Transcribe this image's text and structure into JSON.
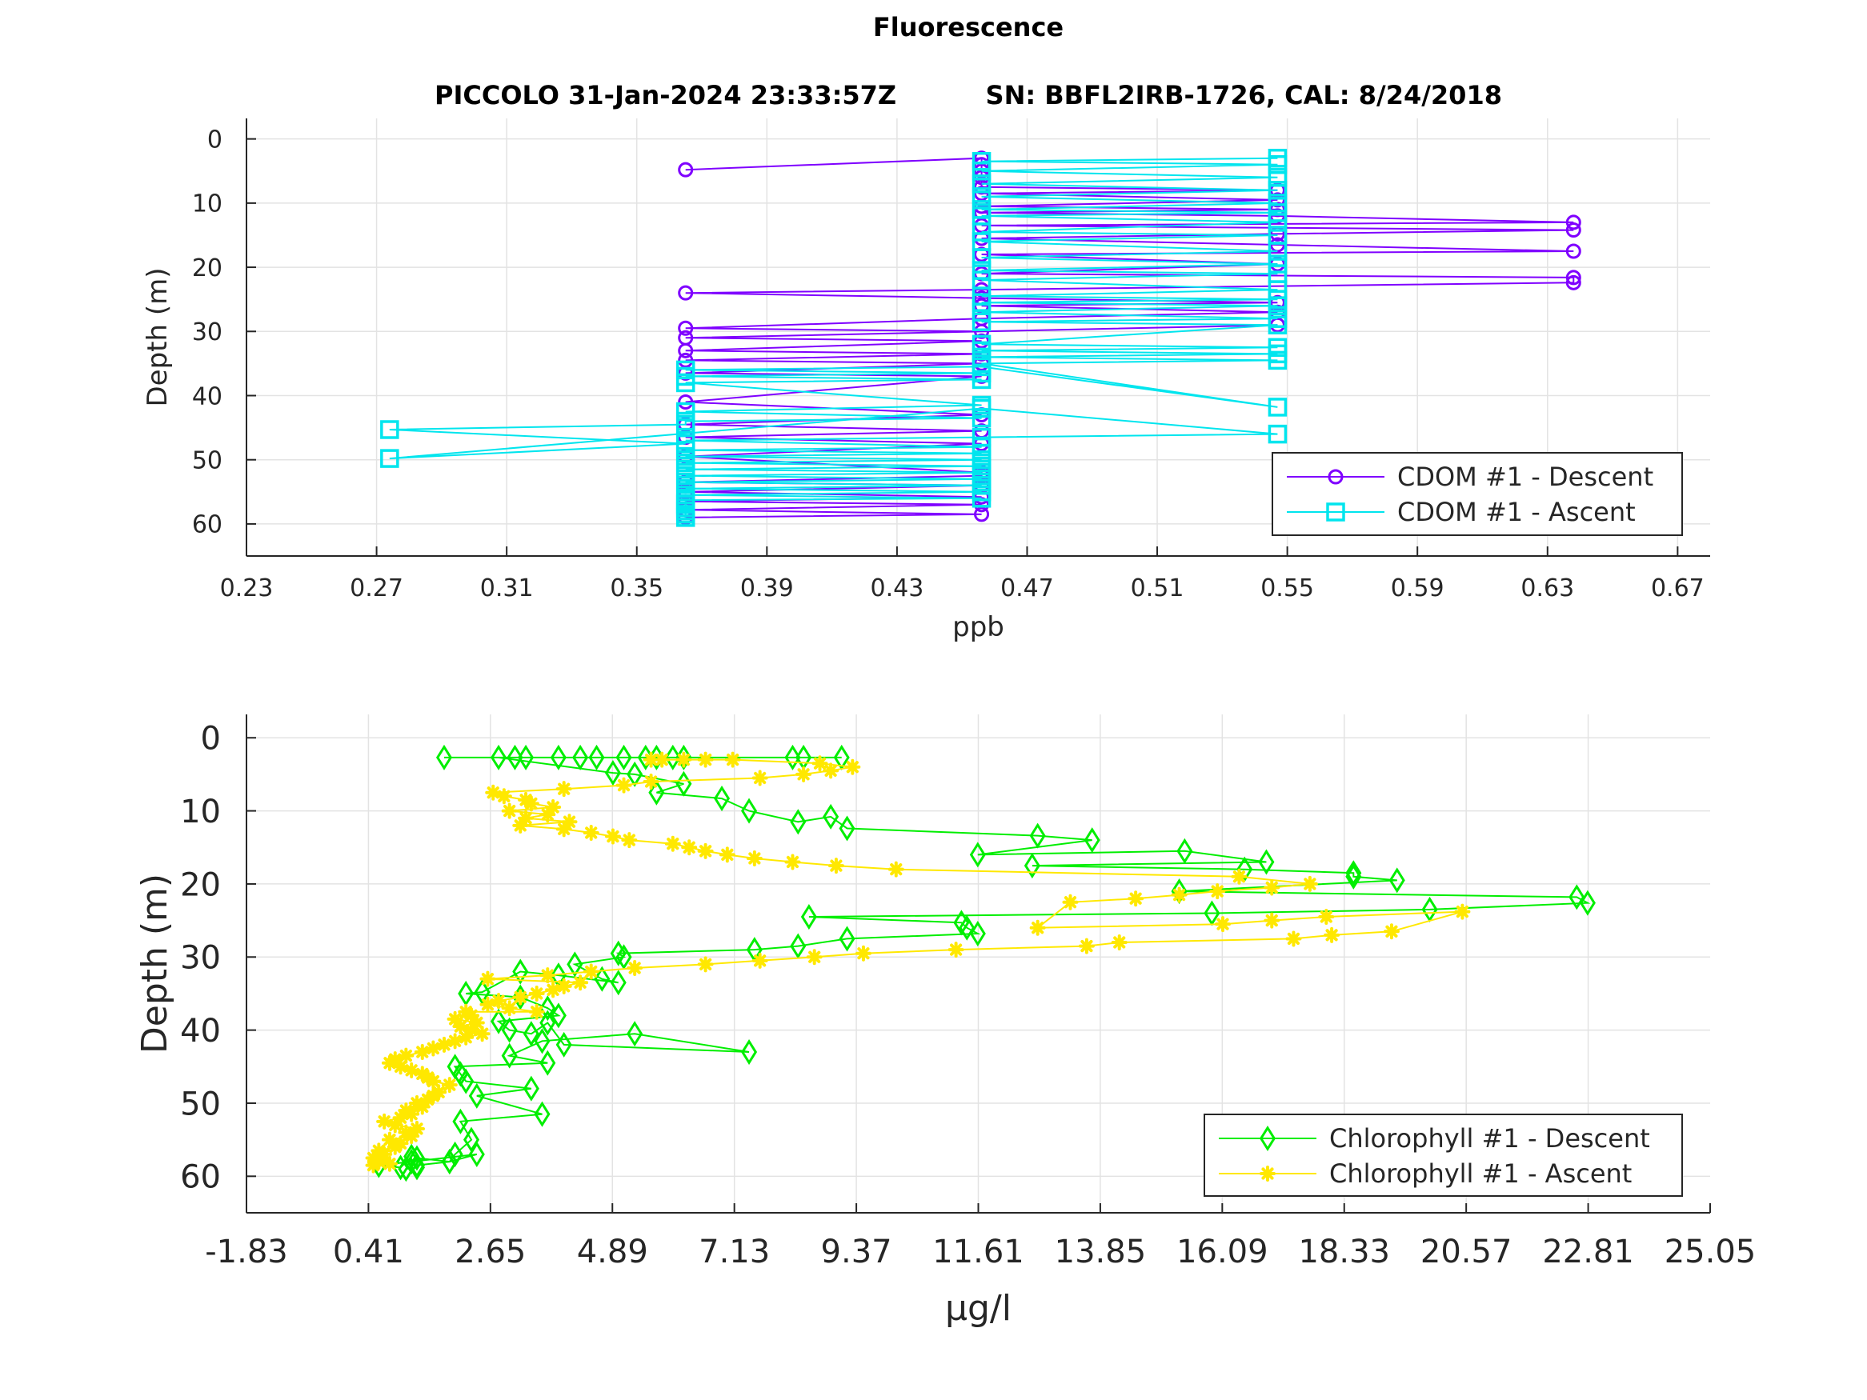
{
  "figure": {
    "suptitle": "Fluorescence",
    "subtitle": "PICCOLO 31-Jan-2024 23:33:57Z          SN: BBFL2IRB-1726, CAL: 8/24/2018"
  },
  "chart_data": [
    {
      "type": "line",
      "xlabel": "ppb",
      "ylabel": "Depth (m)",
      "xlim": [
        0.23,
        0.68
      ],
      "ylim": [
        0,
        65
      ],
      "y_reversed": true,
      "xticks": [
        "0.23",
        "0.27",
        "0.31",
        "0.35",
        "0.39",
        "0.43",
        "0.47",
        "0.51",
        "0.55",
        "0.59",
        "0.63",
        "0.67"
      ],
      "yticks": [
        "0",
        "10",
        "20",
        "30",
        "40",
        "50",
        "60"
      ],
      "grid": true,
      "legend_position": "bottom-right",
      "series": [
        {
          "name": "CDOM #1 - Descent",
          "color": "#7f00ff",
          "marker": "circle",
          "x": [
            0.365,
            0.456,
            0.456,
            0.456,
            0.456,
            0.456,
            0.547,
            0.456,
            0.547,
            0.456,
            0.547,
            0.456,
            0.547,
            0.638,
            0.456,
            0.638,
            0.547,
            0.456,
            0.547,
            0.638,
            0.456,
            0.547,
            0.456,
            0.638,
            0.638,
            0.456,
            0.365,
            0.456,
            0.547,
            0.456,
            0.547,
            0.456,
            0.365,
            0.456,
            0.547,
            0.365,
            0.456,
            0.365,
            0.456,
            0.365,
            0.456,
            0.365,
            0.456,
            0.365,
            0.456,
            0.365,
            0.456,
            0.365,
            0.456,
            0.365,
            0.456,
            0.456,
            0.365,
            0.456,
            0.365,
            0.456,
            0.365,
            0.456,
            0.365,
            0.456,
            0.365
          ],
          "y": [
            4.8,
            3.0,
            4.0,
            5.0,
            6.0,
            7.5,
            8.0,
            8.5,
            9.5,
            10.5,
            11.0,
            11.5,
            12.0,
            13.0,
            13.5,
            14.2,
            14.8,
            15.5,
            16.5,
            17.5,
            18.0,
            19.5,
            21.0,
            21.6,
            22.4,
            23.5,
            24.0,
            24.8,
            25.5,
            26.0,
            27.0,
            28.0,
            29.5,
            30.0,
            29.0,
            31.0,
            31.5,
            33.0,
            33.5,
            34.5,
            35.0,
            36.5,
            37.0,
            41.0,
            43.0,
            44.5,
            45.5,
            46.5,
            47.5,
            49.5,
            52.0,
            52.5,
            53.5,
            54.0,
            55.0,
            55.8,
            56.5,
            57.0,
            57.8,
            58.5,
            59.0
          ]
        },
        {
          "name": "CDOM #1 - Ascent",
          "color": "#00e5ee",
          "marker": "square",
          "x": [
            0.365,
            0.365,
            0.365,
            0.365,
            0.365,
            0.365,
            0.365,
            0.456,
            0.365,
            0.456,
            0.365,
            0.456,
            0.365,
            0.456,
            0.365,
            0.456,
            0.365,
            0.456,
            0.365,
            0.456,
            0.365,
            0.456,
            0.365,
            0.456,
            0.365,
            0.456,
            0.547,
            0.456,
            0.274,
            0.365,
            0.274,
            0.365,
            0.365,
            0.456,
            0.365,
            0.456,
            0.365,
            0.456,
            0.365,
            0.456,
            0.365,
            0.456,
            0.547,
            0.456,
            0.547,
            0.456,
            0.547,
            0.456,
            0.547,
            0.456,
            0.547,
            0.456,
            0.547,
            0.456,
            0.547,
            0.456,
            0.547,
            0.456,
            0.547,
            0.456,
            0.547,
            0.456,
            0.547,
            0.456,
            0.547,
            0.456,
            0.547,
            0.456,
            0.547,
            0.456,
            0.547,
            0.456,
            0.547,
            0.456,
            0.547,
            0.456,
            0.547,
            0.456,
            0.547,
            0.456,
            0.547
          ],
          "y": [
            59.0,
            58.5,
            58.0,
            57.5,
            57.0,
            56.8,
            56.3,
            56.0,
            55.5,
            55.0,
            54.5,
            54.0,
            53.5,
            53.0,
            52.5,
            52.0,
            51.5,
            51.0,
            50.5,
            50.0,
            49.5,
            49.0,
            48.5,
            48.0,
            47.0,
            46.5,
            46.0,
            42.0,
            49.8,
            47.5,
            45.3,
            44.5,
            44.0,
            43.5,
            42.5,
            41.5,
            38.0,
            37.5,
            37.0,
            36.5,
            36.0,
            35.5,
            41.8,
            35.0,
            34.5,
            34.0,
            33.5,
            33.0,
            32.5,
            32.0,
            29.0,
            28.5,
            28.0,
            27.0,
            26.0,
            25.5,
            25.0,
            24.5,
            23.5,
            22.0,
            21.0,
            20.5,
            19.5,
            18.5,
            17.5,
            16.0,
            15.0,
            14.5,
            13.0,
            12.0,
            11.5,
            11.0,
            10.0,
            9.0,
            8.0,
            7.0,
            6.0,
            5.0,
            4.0,
            3.5,
            3.0
          ]
        }
      ]
    },
    {
      "type": "line",
      "xlabel": "µg/l",
      "ylabel": "Depth (m)",
      "xlim": [
        -1.83,
        25.05
      ],
      "ylim": [
        0,
        65
      ],
      "y_reversed": true,
      "xticks": [
        "-1.83",
        "0.41",
        "2.65",
        "4.89",
        "7.13",
        "9.37",
        "11.61",
        "13.85",
        "16.09",
        "18.33",
        "20.57",
        "22.81",
        "25.05"
      ],
      "yticks": [
        "0",
        "10",
        "20",
        "30",
        "40",
        "50",
        "60"
      ],
      "grid": true,
      "legend_position": "bottom-right",
      "series": [
        {
          "name": "Chlorophyll #1 - Descent",
          "color": "#00ee00",
          "marker": "diamond",
          "x": [
            1.8,
            3.1,
            3.3,
            3.9,
            4.3,
            4.6,
            5.1,
            5.5,
            5.7,
            6.0,
            6.2,
            8.2,
            8.4,
            9.1,
            2.8,
            4.9,
            5.3,
            6.2,
            5.7,
            6.9,
            7.4,
            8.3,
            8.9,
            9.2,
            12.7,
            13.7,
            11.6,
            15.4,
            16.9,
            12.6,
            16.5,
            18.5,
            18.5,
            19.3,
            15.3,
            22.6,
            22.8,
            19.9,
            15.9,
            8.5,
            11.3,
            11.4,
            11.6,
            9.2,
            8.3,
            7.5,
            5.0,
            5.1,
            4.2,
            4.7,
            5.0,
            3.9,
            3.2,
            2.5,
            2.2,
            3.2,
            3.7,
            3.9,
            2.8,
            3.0,
            3.4,
            3.7,
            4.0,
            7.4,
            5.3,
            3.6,
            3.0,
            3.7,
            2.0,
            2.1,
            2.2,
            3.4,
            2.4,
            3.6,
            2.1,
            2.3,
            2.0,
            1.9,
            1.3,
            1.2,
            1.3,
            1.1,
            1.2,
            1.0,
            0.6,
            2.4,
            1.9,
            1.3
          ],
          "y": [
            2.7,
            2.7,
            2.7,
            2.7,
            2.7,
            2.7,
            2.7,
            2.7,
            2.7,
            2.7,
            2.7,
            2.7,
            2.7,
            2.7,
            2.7,
            4.8,
            5.0,
            6.3,
            7.5,
            8.3,
            10.0,
            11.5,
            10.8,
            12.4,
            13.4,
            14.0,
            16.0,
            15.5,
            17.0,
            17.5,
            18.0,
            18.5,
            19.0,
            19.5,
            21.0,
            21.8,
            22.6,
            23.5,
            24.0,
            24.5,
            25.3,
            26.0,
            26.8,
            27.5,
            28.5,
            29.0,
            29.5,
            30.0,
            31.0,
            33.0,
            33.5,
            32.5,
            32.0,
            34.8,
            35.0,
            35.5,
            37.0,
            38.0,
            38.8,
            40.0,
            40.5,
            39.0,
            42.0,
            43.0,
            40.5,
            41.5,
            43.5,
            44.5,
            45.0,
            46.0,
            47.0,
            48.0,
            49.0,
            51.5,
            52.5,
            55.0,
            57.0,
            58.0,
            57.5,
            58.0,
            58.8,
            59.0,
            57.3,
            58.8,
            58.5,
            57.0,
            58.0,
            58.5
          ]
        },
        {
          "name": "Chlorophyll #1 - Ascent",
          "color": "#ffe800",
          "marker": "star",
          "x": [
            0.5,
            0.6,
            0.5,
            0.7,
            0.8,
            0.6,
            0.9,
            1.0,
            0.8,
            1.2,
            1.1,
            1.3,
            0.9,
            0.7,
            1.0,
            1.2,
            1.1,
            1.4,
            1.3,
            1.5,
            1.6,
            1.7,
            1.9,
            1.6,
            1.5,
            1.4,
            1.2,
            1.0,
            0.8,
            0.9,
            1.1,
            1.4,
            1.6,
            1.8,
            2.0,
            2.2,
            2.5,
            2.3,
            2.1,
            2.4,
            2.0,
            2.3,
            2.2,
            3.5,
            3.0,
            2.6,
            2.8,
            3.2,
            3.5,
            3.8,
            4.0,
            4.3,
            2.6,
            3.7,
            4.5,
            5.3,
            6.6,
            7.6,
            8.6,
            9.5,
            11.2,
            13.6,
            14.2,
            17.4,
            18.1,
            19.2,
            20.5,
            18.0,
            17.0,
            16.1,
            12.7,
            13.3,
            14.5,
            15.3,
            16.0,
            17.0,
            17.7,
            16.4,
            10.1,
            9.0,
            8.2,
            7.5,
            7.0,
            6.6,
            6.3,
            6.0,
            5.2,
            4.9,
            4.5,
            4.0,
            3.2,
            4.1,
            3.3,
            3.7,
            3.0,
            3.8,
            3.4,
            3.3,
            2.9,
            2.7,
            4.0,
            5.1,
            5.6,
            7.6,
            8.4,
            8.9,
            9.3,
            8.7,
            7.1,
            6.6,
            6.2,
            5.8,
            5.6
          ],
          "y": [
            58.5,
            58.0,
            57.5,
            57.0,
            58.3,
            56.5,
            56.0,
            55.5,
            55.0,
            54.5,
            54.0,
            53.5,
            53.0,
            52.5,
            52.0,
            51.5,
            51.0,
            50.5,
            50.0,
            49.5,
            49.0,
            48.5,
            47.5,
            47.0,
            46.5,
            46.0,
            45.5,
            45.0,
            44.5,
            44.0,
            43.5,
            43.0,
            42.5,
            42.0,
            41.5,
            41.0,
            40.5,
            40.0,
            39.5,
            39.0,
            38.5,
            38.0,
            37.5,
            37.5,
            37.0,
            36.5,
            36.0,
            35.5,
            35.0,
            34.5,
            34.0,
            33.5,
            33.0,
            32.5,
            32.0,
            31.5,
            31.0,
            30.5,
            30.0,
            29.5,
            29.0,
            28.5,
            28.0,
            27.5,
            27.0,
            26.5,
            23.8,
            24.5,
            25.0,
            25.5,
            26.0,
            22.5,
            22.0,
            21.5,
            21.0,
            20.5,
            20.0,
            19.0,
            18.0,
            17.5,
            17.0,
            16.5,
            16.0,
            15.5,
            15.0,
            14.5,
            14.0,
            13.5,
            13.0,
            12.5,
            12.0,
            11.5,
            11.0,
            10.5,
            10.0,
            9.5,
            9.0,
            8.5,
            8.0,
            7.5,
            7.0,
            6.5,
            6.0,
            5.5,
            5.0,
            4.5,
            4.0,
            3.5,
            3.0,
            3.0,
            3.0,
            3.0,
            3.0
          ]
        }
      ]
    }
  ]
}
